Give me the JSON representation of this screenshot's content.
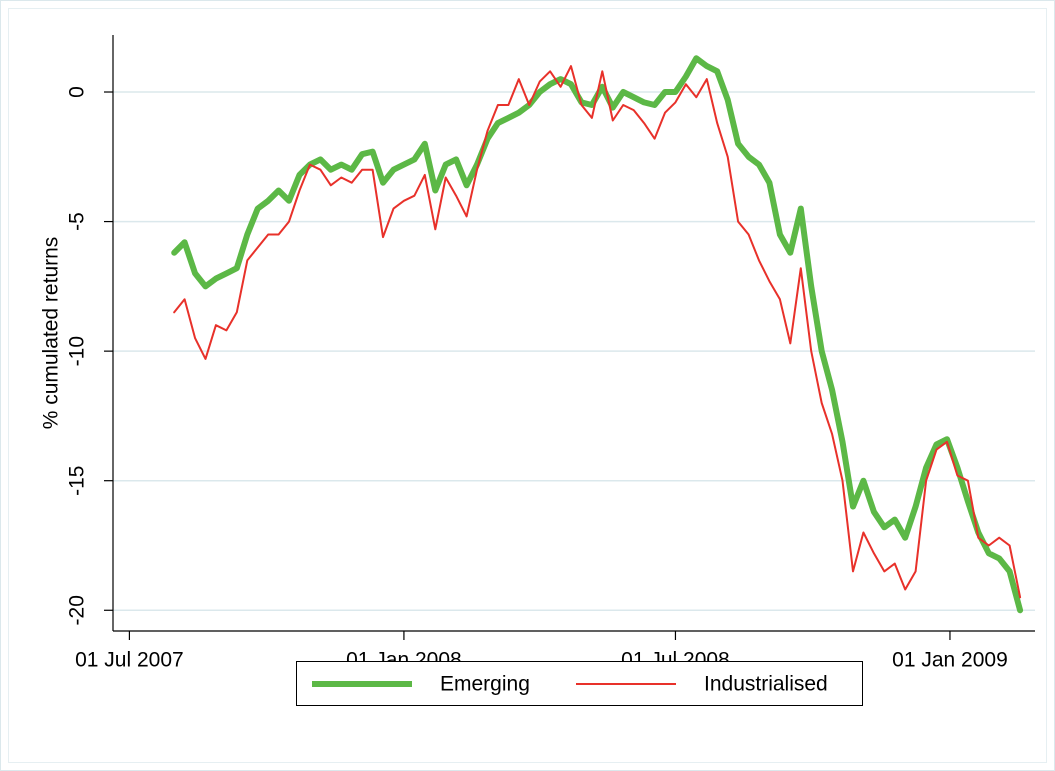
{
  "chart_data": {
    "type": "line",
    "ylabel": "% cumulated returns",
    "x": [
      "2007-07-31",
      "2007-08-07",
      "2007-08-14",
      "2007-08-21",
      "2007-08-28",
      "2007-09-04",
      "2007-09-11",
      "2007-09-18",
      "2007-09-25",
      "2007-10-02",
      "2007-10-09",
      "2007-10-16",
      "2007-10-23",
      "2007-10-30",
      "2007-11-06",
      "2007-11-13",
      "2007-11-20",
      "2007-11-27",
      "2007-12-04",
      "2007-12-11",
      "2007-12-18",
      "2007-12-25",
      "2008-01-01",
      "2008-01-08",
      "2008-01-15",
      "2008-01-22",
      "2008-01-29",
      "2008-02-05",
      "2008-02-12",
      "2008-02-19",
      "2008-02-26",
      "2008-03-04",
      "2008-03-11",
      "2008-03-18",
      "2008-03-25",
      "2008-04-01",
      "2008-04-08",
      "2008-04-15",
      "2008-04-22",
      "2008-04-29",
      "2008-05-06",
      "2008-05-13",
      "2008-05-20",
      "2008-05-27",
      "2008-06-03",
      "2008-06-10",
      "2008-06-17",
      "2008-06-24",
      "2008-07-01",
      "2008-07-08",
      "2008-07-15",
      "2008-07-22",
      "2008-07-29",
      "2008-08-05",
      "2008-08-12",
      "2008-08-19",
      "2008-08-26",
      "2008-09-02",
      "2008-09-09",
      "2008-09-16",
      "2008-09-23",
      "2008-09-30",
      "2008-10-07",
      "2008-10-14",
      "2008-10-21",
      "2008-10-28",
      "2008-11-04",
      "2008-11-11",
      "2008-11-18",
      "2008-11-25",
      "2008-12-02",
      "2008-12-09",
      "2008-12-16",
      "2008-12-23",
      "2008-12-30",
      "2009-01-06",
      "2009-01-13",
      "2009-01-20",
      "2009-01-27",
      "2009-02-03",
      "2009-02-10",
      "2009-02-17"
    ],
    "series": [
      {
        "name": "Emerging",
        "color": "#5cb846",
        "width": 6,
        "values": [
          -6.2,
          -5.8,
          -7.0,
          -7.5,
          -7.2,
          -7.0,
          -6.8,
          -5.5,
          -4.5,
          -4.2,
          -3.8,
          -4.2,
          -3.2,
          -2.8,
          -2.6,
          -3.0,
          -2.8,
          -3.0,
          -2.4,
          -2.3,
          -3.5,
          -3.0,
          -2.8,
          -2.6,
          -2.0,
          -3.8,
          -2.8,
          -2.6,
          -3.6,
          -2.8,
          -1.8,
          -1.2,
          -1.0,
          -0.8,
          -0.5,
          0.0,
          0.3,
          0.5,
          0.3,
          -0.4,
          -0.5,
          0.2,
          -0.6,
          0.0,
          -0.2,
          -0.4,
          -0.5,
          0.0,
          0.0,
          0.6,
          1.3,
          1.0,
          0.8,
          -0.3,
          -2.0,
          -2.5,
          -2.8,
          -3.5,
          -5.5,
          -6.2,
          -4.5,
          -7.5,
          -10.0,
          -11.5,
          -13.5,
          -16.0,
          -15.0,
          -16.2,
          -16.8,
          -16.5,
          -17.2,
          -16.0,
          -14.5,
          -13.6,
          -13.4,
          -14.5,
          -15.8,
          -17.0,
          -17.8,
          -18.0,
          -18.5,
          -20.0
        ]
      },
      {
        "name": "Industrialised",
        "color": "#e8312a",
        "width": 2,
        "values": [
          -8.5,
          -8.0,
          -9.5,
          -10.3,
          -9.0,
          -9.2,
          -8.5,
          -6.5,
          -6.0,
          -5.5,
          -5.5,
          -5.0,
          -3.8,
          -2.8,
          -3.0,
          -3.6,
          -3.3,
          -3.5,
          -3.0,
          -3.0,
          -5.6,
          -4.5,
          -4.2,
          -4.0,
          -3.2,
          -5.3,
          -3.3,
          -4.0,
          -4.8,
          -3.0,
          -1.5,
          -0.5,
          -0.5,
          0.5,
          -0.5,
          0.4,
          0.8,
          0.2,
          1.0,
          -0.5,
          -1.0,
          0.8,
          -1.1,
          -0.5,
          -0.7,
          -1.2,
          -1.8,
          -0.8,
          -0.4,
          0.3,
          -0.2,
          0.5,
          -1.2,
          -2.5,
          -5.0,
          -5.5,
          -6.5,
          -7.3,
          -8.0,
          -9.7,
          -6.8,
          -10.0,
          -12.0,
          -13.2,
          -15.0,
          -18.5,
          -17.0,
          -17.8,
          -18.5,
          -18.2,
          -19.2,
          -18.5,
          -15.0,
          -13.8,
          -13.5,
          -14.8,
          -15.0,
          -17.2,
          -17.5,
          -17.2,
          -17.5,
          -19.5
        ]
      }
    ],
    "xlim": [
      "2007-06-20",
      "2009-02-27"
    ],
    "xticks": [
      {
        "value": "2007-07-01",
        "label": "01 Jul 2007"
      },
      {
        "value": "2008-01-01",
        "label": "01 Jan 2008"
      },
      {
        "value": "2008-07-01",
        "label": "01 Jul 2008"
      },
      {
        "value": "2009-01-01",
        "label": "01 Jan 2009"
      }
    ],
    "ylim": [
      -20.8,
      2.2
    ],
    "yticks": [
      -20,
      -15,
      -10,
      -5,
      0
    ],
    "grid": true,
    "legend": "bottom",
    "annotations": [
      {
        "text": ".",
        "x": "2008-04-20"
      }
    ]
  }
}
